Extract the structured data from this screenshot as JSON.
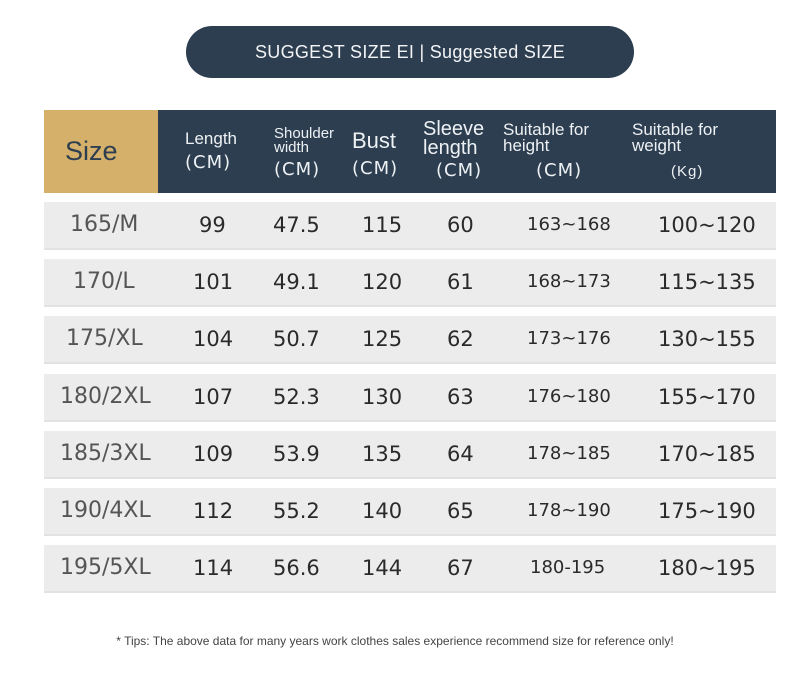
{
  "banner": {
    "title": "SUGGEST SIZE EI | Suggested SIZE"
  },
  "header": {
    "size_label": "Size",
    "columns": [
      {
        "label": "Length",
        "unit": "(CM)"
      },
      {
        "label": "Shoulder width",
        "unit": "(CM)"
      },
      {
        "label": "Bust",
        "unit": "(CM)"
      },
      {
        "label": "Sleeve length",
        "unit": "(CM)"
      },
      {
        "label": "Suitable for height",
        "unit": "(CM)"
      },
      {
        "label": "Suitable for weight",
        "unit": "(Kg)"
      }
    ]
  },
  "rows": [
    {
      "size": "165/M",
      "length": "99",
      "shoulder": "47.5",
      "bust": "115",
      "sleeve": "60",
      "height": "163~168",
      "weight": "100~120"
    },
    {
      "size": "170/L",
      "length": "101",
      "shoulder": "49.1",
      "bust": "120",
      "sleeve": "61",
      "height": "168~173",
      "weight": "115~135"
    },
    {
      "size": "175/XL",
      "length": "104",
      "shoulder": "50.7",
      "bust": "125",
      "sleeve": "62",
      "height": "173~176",
      "weight": "130~155"
    },
    {
      "size": "180/2XL",
      "length": "107",
      "shoulder": "52.3",
      "bust": "130",
      "sleeve": "63",
      "height": "176~180",
      "weight": "155~170"
    },
    {
      "size": "185/3XL",
      "length": "109",
      "shoulder": "53.9",
      "bust": "135",
      "sleeve": "64",
      "height": "178~185",
      "weight": "170~185"
    },
    {
      "size": "190/4XL",
      "length": "112",
      "shoulder": "55.2",
      "bust": "140",
      "sleeve": "65",
      "height": "178~190",
      "weight": "175~190"
    },
    {
      "size": "195/5XL",
      "length": "114",
      "shoulder": "56.6",
      "bust": "144",
      "sleeve": "67",
      "height": "180-195",
      "weight": "180~195"
    }
  ],
  "tips": "* Tips: The above data for many years work clothes sales experience recommend size for reference only!",
  "colors": {
    "navy": "#2c3e50",
    "gold": "#d4b06a",
    "row_bg": "#ececec"
  }
}
